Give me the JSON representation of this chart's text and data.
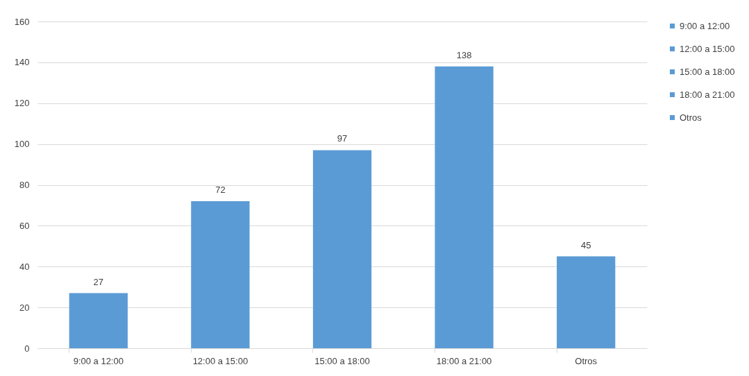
{
  "chart_data": {
    "type": "bar",
    "categories": [
      "9:00 a 12:00",
      "12:00 a 15:00",
      "15:00 a 18:00",
      "18:00 a 21:00",
      "Otros"
    ],
    "series": [
      {
        "name": "9:00 a 12:00",
        "color": "#5b9bd5",
        "values": [
          27,
          null,
          null,
          null,
          null
        ]
      },
      {
        "name": "12:00 a 15:00",
        "color": "#5b9bd5",
        "values": [
          null,
          72,
          null,
          null,
          null
        ]
      },
      {
        "name": "15:00 a 18:00",
        "color": "#5b9bd5",
        "values": [
          null,
          null,
          97,
          null,
          null
        ]
      },
      {
        "name": "18:00 a 21:00",
        "color": "#5b9bd5",
        "values": [
          null,
          null,
          null,
          138,
          null
        ]
      },
      {
        "name": "Otros",
        "color": "#5b9bd5",
        "values": [
          null,
          null,
          null,
          null,
          45
        ]
      }
    ],
    "ylim": [
      0,
      160
    ],
    "yticks": [
      0,
      20,
      40,
      60,
      80,
      100,
      120,
      140,
      160
    ],
    "grid": "y",
    "legend": "right",
    "data_labels": true
  }
}
